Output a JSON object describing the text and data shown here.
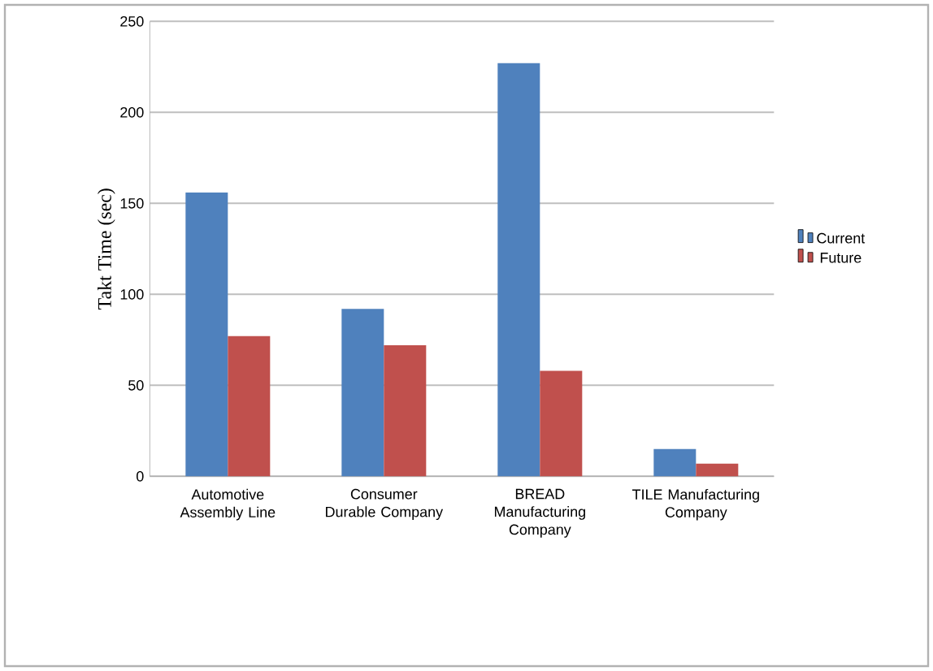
{
  "chart_data": {
    "type": "bar",
    "ylabel": "Takt Time (sec)",
    "categories": [
      "Automotive Assembly Line",
      "Consumer Durable Company",
      "BREAD Manufacturing Company",
      "TILE Manufacturing Company"
    ],
    "series": [
      {
        "name": "Current",
        "color": "#4f81bd",
        "values": [
          156,
          92,
          227,
          15
        ]
      },
      {
        "name": "Future",
        "color": "#c0504d",
        "values": [
          77,
          72,
          58,
          7
        ]
      }
    ],
    "ylim": [
      0,
      250
    ],
    "yticks": [
      0,
      50,
      100,
      150,
      200,
      250
    ],
    "grid": "y",
    "legend": "right"
  }
}
